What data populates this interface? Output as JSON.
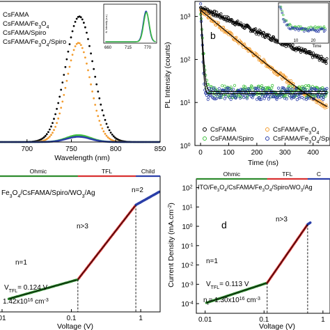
{
  "chart_data": [
    {
      "id": "a",
      "type": "line",
      "xlabel": "Wavelength (nm)",
      "x_ticks": [
        "700",
        "750",
        "800",
        "850"
      ],
      "xlim": [
        668,
        850
      ],
      "ylim": [
        0,
        1.12
      ],
      "legend": [
        "CsFAMA",
        "CsFAMA/Fe3O4",
        "CsFAMA/Spiro",
        "CsFAMA/Fe3O4/Spiro"
      ],
      "legend_placement": "top-left",
      "series": [
        {
          "name": "CsFAMA",
          "color": "#000000",
          "peak": 1.0,
          "center": 759,
          "width": 22
        },
        {
          "name": "CsFAMA/Fe3O4",
          "color": "#f39c2e",
          "peak": 0.79,
          "center": 758,
          "width": 19
        },
        {
          "name": "CsFAMA/Spiro",
          "color": "#3ec03e",
          "peak": 0.055,
          "center": 758,
          "width": 19
        },
        {
          "name": "CsFAMA/Fe3O4/Spiro",
          "color": "#2a3ea8",
          "peak": 0.042,
          "center": 758,
          "width": 19
        }
      ],
      "inset": {
        "x_ticks": [
          "660",
          "715",
          "770"
        ],
        "ylabel": "N. Intensity (a.u.)",
        "series_colors": [
          "#1a3ea8",
          "#3ec03e"
        ],
        "peak_x": 768
      }
    },
    {
      "id": "b",
      "type": "scatter",
      "label": "b",
      "xlabel": "Time (ns)",
      "ylabel": "PL Intensity (counts)",
      "x_ticks": [
        "0",
        "100",
        "200",
        "300",
        "400"
      ],
      "y_ticks": [
        "10",
        "10",
        "10",
        "10"
      ],
      "y_tick_exponents": [
        "0",
        "1",
        "2",
        "3"
      ],
      "xlim": [
        -20,
        460
      ],
      "ylim_log10": [
        0,
        3.35
      ],
      "legend_placement": "bottom",
      "series": [
        {
          "name": "CsFAMA",
          "color": "#000000",
          "a0": 1600,
          "tau": 155,
          "floor": 3
        },
        {
          "name": "CsFAMA/Fe3O4",
          "color": "#f39c2e",
          "a0": 1400,
          "tau": 80,
          "floor": 3
        },
        {
          "name": "CsFAMA/Spiro",
          "color": "#3ec03e",
          "a0": 1500,
          "tau": 4,
          "floor": 18
        },
        {
          "name": "CsFAMA/Fe3O4/Spiro",
          "color": "#2a3ea8",
          "a0": 1500,
          "tau": 3,
          "floor": 16
        }
      ],
      "inset": {
        "x_ticks": [
          "10",
          "20"
        ],
        "label": "Time"
      }
    },
    {
      "id": "c",
      "type": "scatter",
      "xlabel": "Voltage (V)",
      "x_ticks": [
        "01",
        "0.1",
        "1"
      ],
      "regions": [
        "Ohmic",
        "TFL",
        "Child"
      ],
      "device": "Fe3O4/CsFAMA/Spiro/WO3/Ag",
      "slopes": [
        "n=1",
        "n>3",
        "n=2"
      ],
      "vtfl": "0.124",
      "nt_mantissa": "1.42x10",
      "nt_exponent": "16",
      "vtfl_v": 0.124,
      "v_child": 0.85
    },
    {
      "id": "d",
      "type": "scatter",
      "label": "d",
      "xlabel": "Voltage (V)",
      "ylabel": "Current Density (mA.cm",
      "ylabel_exponent": "-2",
      "x_ticks": [
        "0.01",
        "0.1",
        "1"
      ],
      "y_ticks": [
        "10",
        "10",
        "10",
        "10",
        "10",
        "10",
        "10"
      ],
      "y_tick_exponents": [
        "2",
        "1",
        "0",
        "-1",
        "-2",
        "-3",
        "-4"
      ],
      "regions": [
        "Ohmic",
        "TFL",
        "C"
      ],
      "device": "ITO/Fe3O4/CsFAMA/Fe3O4/Spiro/WO3/Ag",
      "slopes": [
        "n=1",
        "n>3"
      ],
      "vtfl": "0.113",
      "nt_mantissa": "1.30x10",
      "nt_exponent": "16",
      "vtfl_v": 0.113,
      "v_child": 0.55
    }
  ],
  "colors": {
    "ohmic": "#2e8b2e",
    "tfl": "#d83030",
    "child": "#2a3ea8",
    "data_green": "#2e8b2e",
    "data_red": "#d83030",
    "data_blue": "#2a3ea8"
  }
}
